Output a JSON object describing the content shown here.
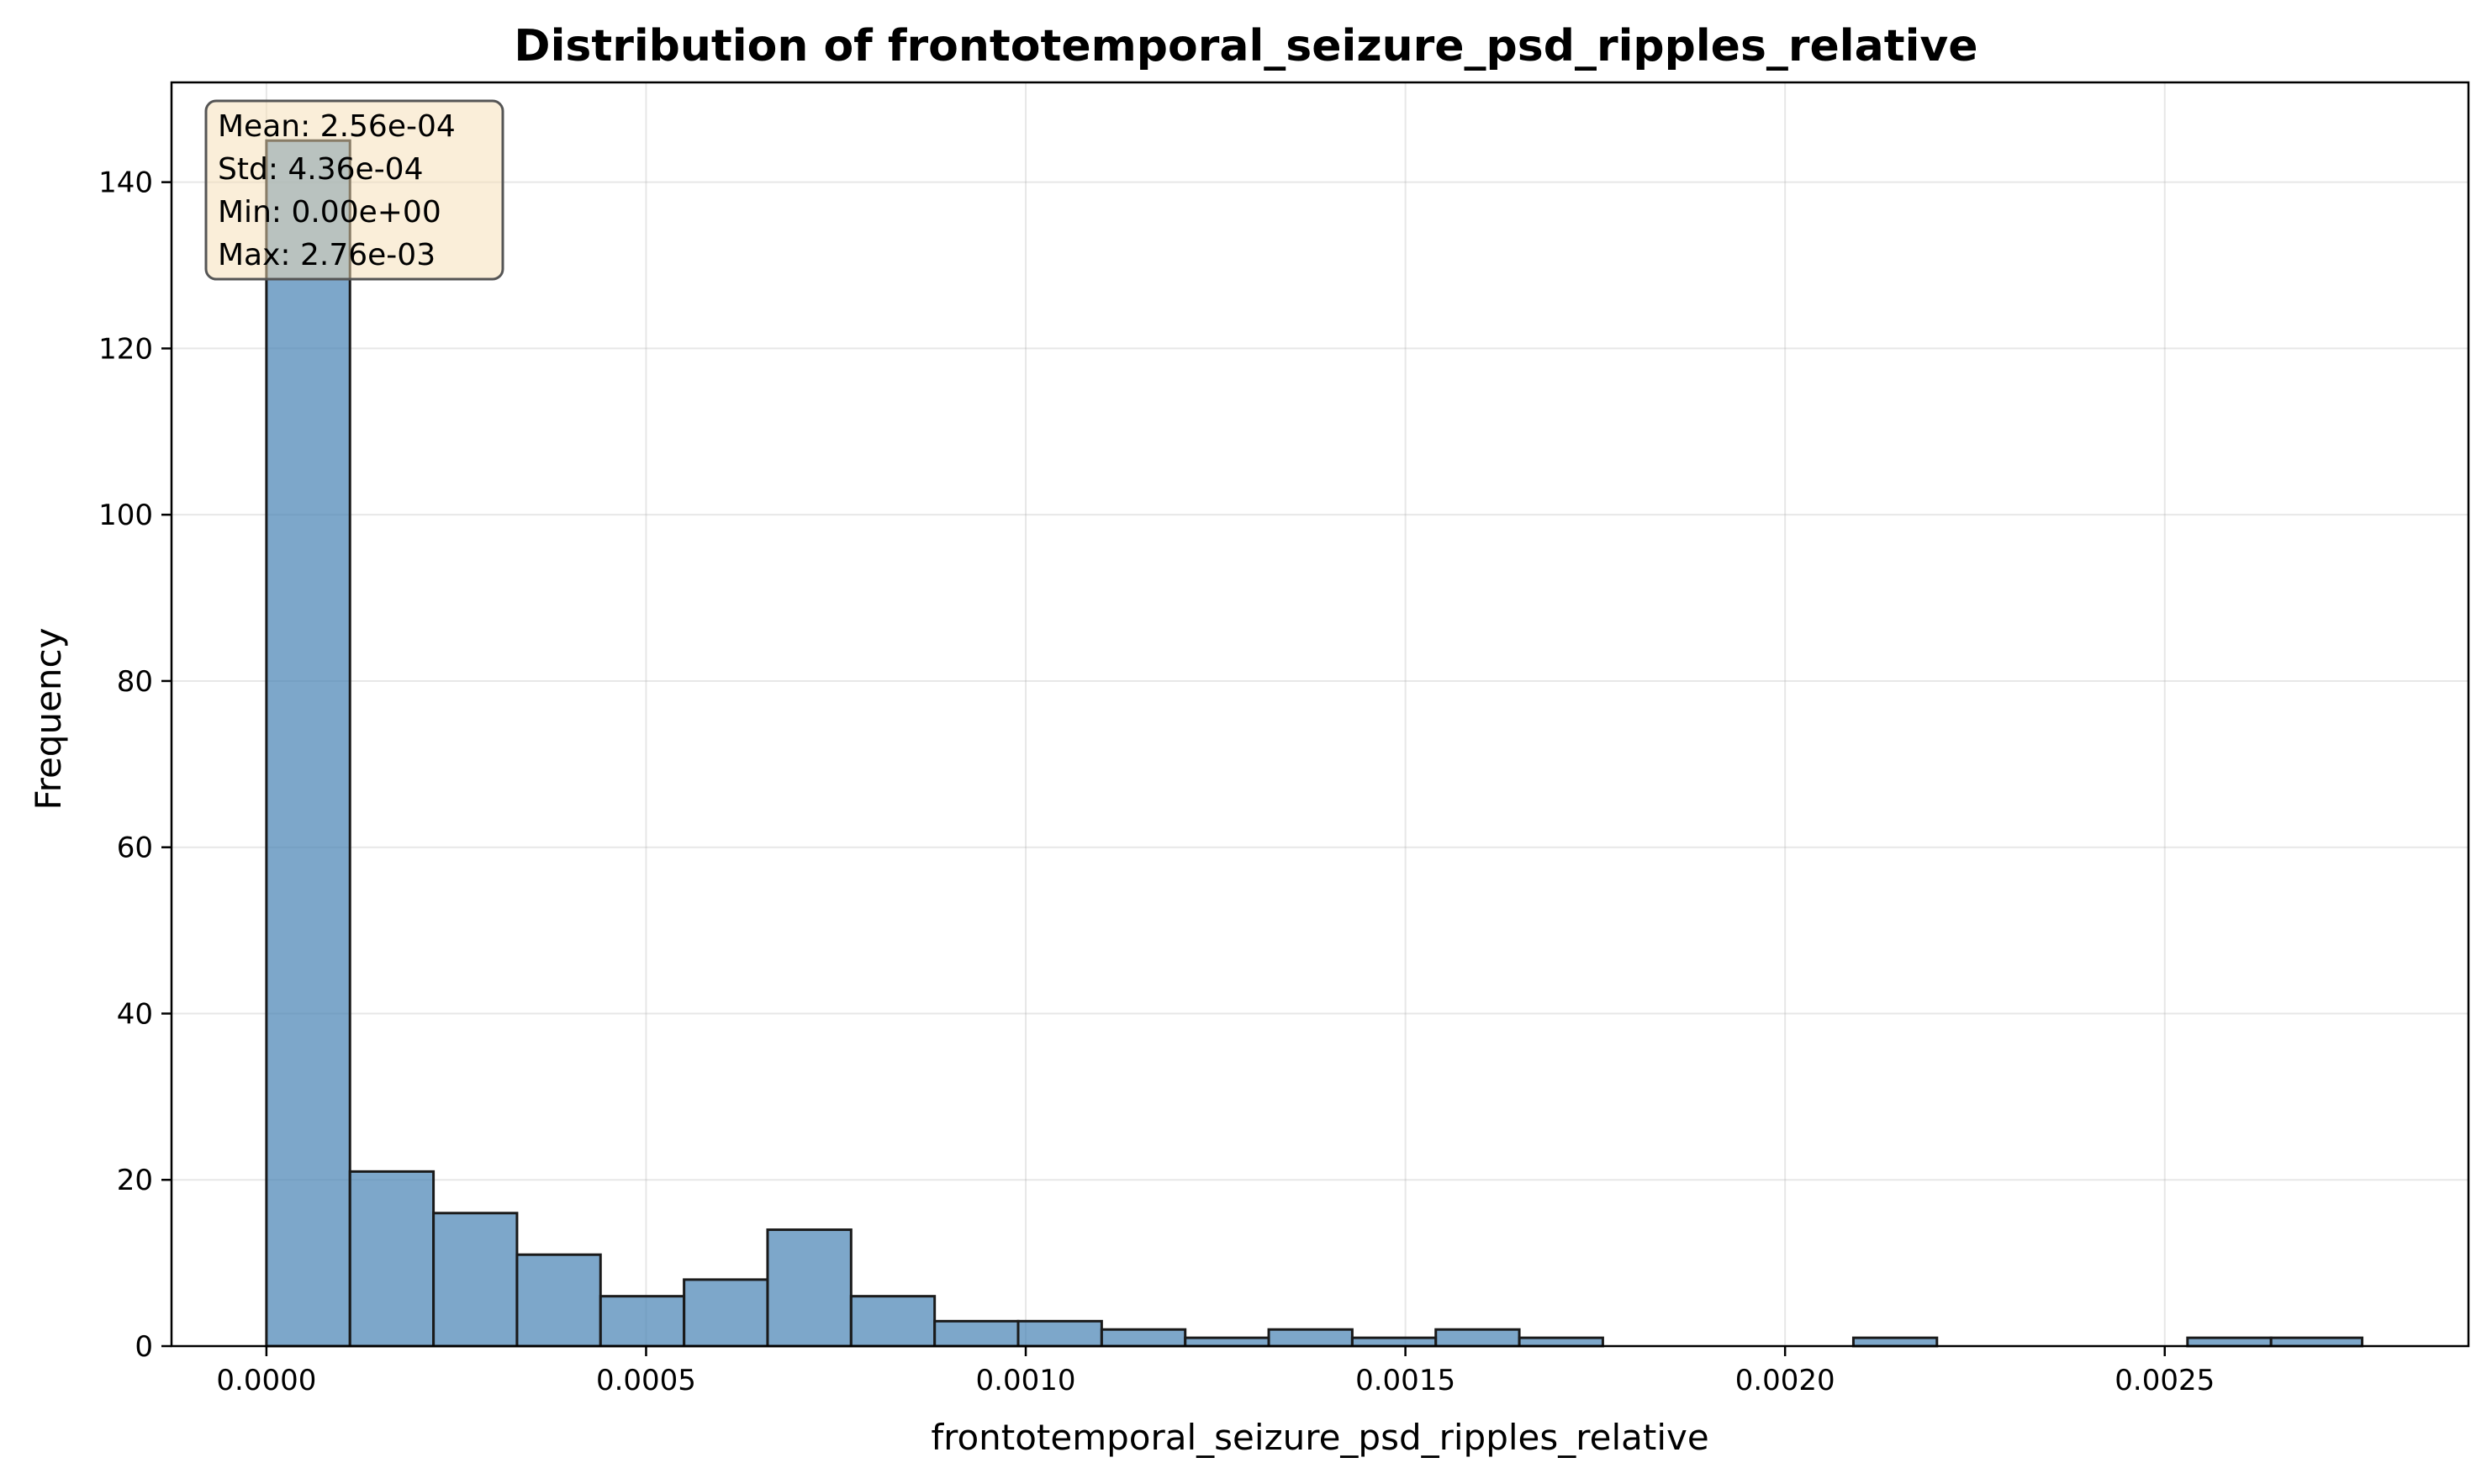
{
  "chart_data": {
    "type": "bar",
    "title": "Distribution of frontotemporal_seizure_psd_ripples_relative",
    "xlabel": "frontotemporal_seizure_psd_ripples_relative",
    "ylabel": "Frequency",
    "bin_edges": [
      0.0,
      0.00011,
      0.00022,
      0.00033,
      0.00044,
      0.00055,
      0.00066,
      0.00077,
      0.00088,
      0.00099,
      0.0011,
      0.00121,
      0.00132,
      0.00143,
      0.00154,
      0.00165,
      0.00176,
      0.00187,
      0.00198,
      0.00209,
      0.0022,
      0.00231,
      0.00242,
      0.00253,
      0.00264,
      0.00276
    ],
    "values": [
      145,
      21,
      16,
      11,
      6,
      8,
      14,
      6,
      3,
      3,
      2,
      1,
      2,
      1,
      2,
      1,
      0,
      0,
      0,
      1,
      0,
      0,
      0,
      1,
      1
    ],
    "xlim": [
      -0.000125,
      0.0029
    ],
    "ylim": [
      0,
      152
    ],
    "xticks": [
      0.0,
      0.0005,
      0.001,
      0.0015,
      0.002,
      0.0025
    ],
    "xtick_labels": [
      "0.0000",
      "0.0005",
      "0.0010",
      "0.0015",
      "0.0020",
      "0.0025"
    ],
    "yticks": [
      0,
      20,
      40,
      60,
      80,
      100,
      120,
      140
    ],
    "ytick_labels": [
      "0",
      "20",
      "40",
      "60",
      "80",
      "100",
      "120",
      "140"
    ],
    "grid": true,
    "bar_color": "#4682b4",
    "bar_edge_color": "#1a1a1a",
    "stats_box": {
      "lines": [
        "Mean: 2.56e-04",
        "Std: 4.36e-04",
        "Min: 0.00e+00",
        "Max: 2.76e-03"
      ],
      "placement": "top-left",
      "background": "#f5deb3",
      "border": "#555555"
    }
  }
}
